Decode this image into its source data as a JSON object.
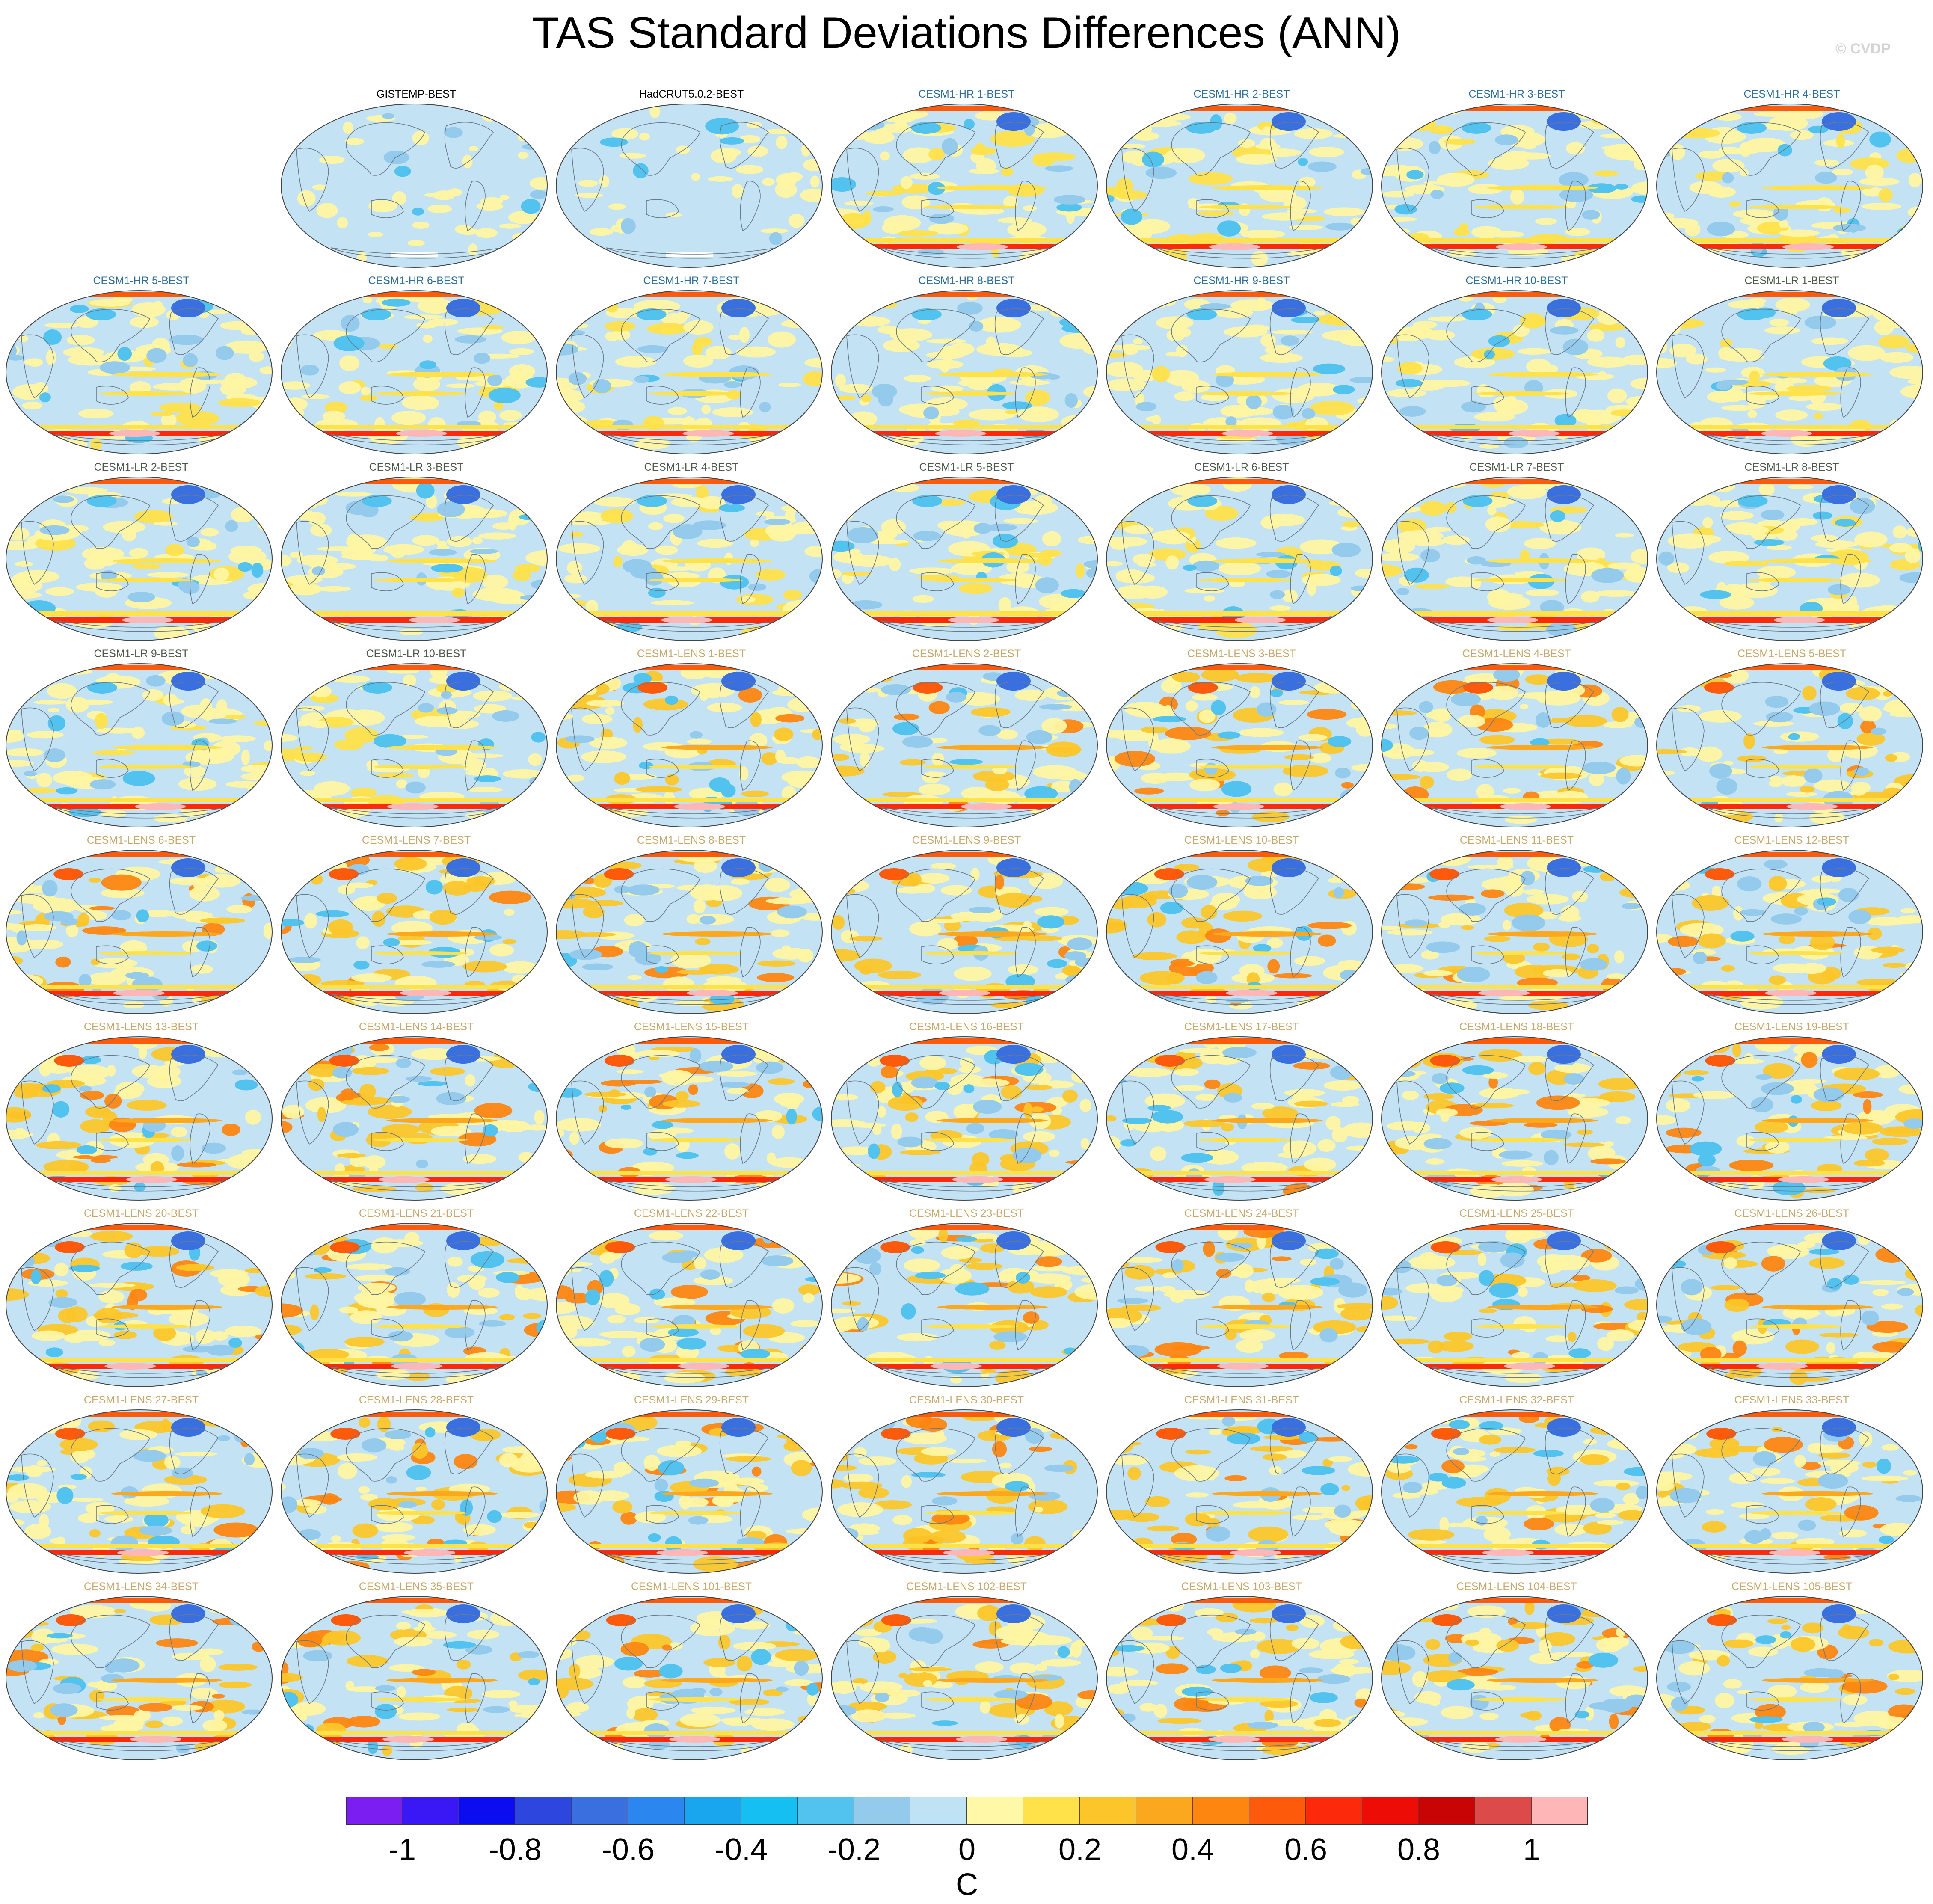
{
  "title": "TAS Standard Deviations Differences (ANN)",
  "watermark": "© CVDP",
  "colorbar": {
    "colors": [
      "#7a1ef2",
      "#3a18f5",
      "#0c0cf0",
      "#2c46de",
      "#3a6fe0",
      "#2b86f0",
      "#1aa6ef",
      "#16bff2",
      "#52c3ee",
      "#94cbec",
      "#bfe2f5",
      "#fff8a6",
      "#ffe24a",
      "#fcc62a",
      "#fca81e",
      "#fd8610",
      "#fd5a0c",
      "#fc2a0a",
      "#ee0c06",
      "#c80404",
      "#dd4a4a",
      "#ffb6b6"
    ],
    "tick_labels": [
      "-1",
      "-0.8",
      "-0.6",
      "-0.4",
      "-0.2",
      "0",
      "0.2",
      "0.4",
      "0.6",
      "0.8",
      "1"
    ],
    "levels": [
      -1.0,
      -0.9,
      -0.8,
      -0.7,
      -0.6,
      -0.5,
      -0.4,
      -0.3,
      -0.2,
      -0.1,
      0,
      0.1,
      0.2,
      0.3,
      0.4,
      0.5,
      0.6,
      0.7,
      0.8,
      0.9,
      1.0
    ],
    "units": "C"
  },
  "title_colors": {
    "obs": "#000000",
    "hr": "#2c6e9e",
    "lr": "#4a5a48",
    "lens": "#c8a86a"
  },
  "panels": [
    {
      "label": "GISTEMP-BEST",
      "group": "obs"
    },
    {
      "label": "HadCRUT5.0.2-BEST",
      "group": "obs"
    },
    {
      "label": "CESM1-HR 1-BEST",
      "group": "hr"
    },
    {
      "label": "CESM1-HR 2-BEST",
      "group": "hr"
    },
    {
      "label": "CESM1-HR 3-BEST",
      "group": "hr"
    },
    {
      "label": "CESM1-HR 4-BEST",
      "group": "hr"
    },
    {
      "label": "CESM1-HR 5-BEST",
      "group": "hr"
    },
    {
      "label": "CESM1-HR 6-BEST",
      "group": "hr"
    },
    {
      "label": "CESM1-HR 7-BEST",
      "group": "hr"
    },
    {
      "label": "CESM1-HR 8-BEST",
      "group": "hr"
    },
    {
      "label": "CESM1-HR 9-BEST",
      "group": "hr"
    },
    {
      "label": "CESM1-HR 10-BEST",
      "group": "hr"
    },
    {
      "label": "CESM1-LR 1-BEST",
      "group": "lr"
    },
    {
      "label": "CESM1-LR 2-BEST",
      "group": "lr"
    },
    {
      "label": "CESM1-LR 3-BEST",
      "group": "lr"
    },
    {
      "label": "CESM1-LR 4-BEST",
      "group": "lr"
    },
    {
      "label": "CESM1-LR 5-BEST",
      "group": "lr"
    },
    {
      "label": "CESM1-LR 6-BEST",
      "group": "lr"
    },
    {
      "label": "CESM1-LR 7-BEST",
      "group": "lr"
    },
    {
      "label": "CESM1-LR 8-BEST",
      "group": "lr"
    },
    {
      "label": "CESM1-LR 9-BEST",
      "group": "lr"
    },
    {
      "label": "CESM1-LR 10-BEST",
      "group": "lr"
    },
    {
      "label": "CESM1-LENS 1-BEST",
      "group": "lens"
    },
    {
      "label": "CESM1-LENS 2-BEST",
      "group": "lens"
    },
    {
      "label": "CESM1-LENS 3-BEST",
      "group": "lens"
    },
    {
      "label": "CESM1-LENS 4-BEST",
      "group": "lens"
    },
    {
      "label": "CESM1-LENS 5-BEST",
      "group": "lens"
    },
    {
      "label": "CESM1-LENS 6-BEST",
      "group": "lens"
    },
    {
      "label": "CESM1-LENS 7-BEST",
      "group": "lens"
    },
    {
      "label": "CESM1-LENS 8-BEST",
      "group": "lens"
    },
    {
      "label": "CESM1-LENS 9-BEST",
      "group": "lens"
    },
    {
      "label": "CESM1-LENS 10-BEST",
      "group": "lens"
    },
    {
      "label": "CESM1-LENS 11-BEST",
      "group": "lens"
    },
    {
      "label": "CESM1-LENS 12-BEST",
      "group": "lens"
    },
    {
      "label": "CESM1-LENS 13-BEST",
      "group": "lens"
    },
    {
      "label": "CESM1-LENS 14-BEST",
      "group": "lens"
    },
    {
      "label": "CESM1-LENS 15-BEST",
      "group": "lens"
    },
    {
      "label": "CESM1-LENS 16-BEST",
      "group": "lens"
    },
    {
      "label": "CESM1-LENS 17-BEST",
      "group": "lens"
    },
    {
      "label": "CESM1-LENS 18-BEST",
      "group": "lens"
    },
    {
      "label": "CESM1-LENS 19-BEST",
      "group": "lens"
    },
    {
      "label": "CESM1-LENS 20-BEST",
      "group": "lens"
    },
    {
      "label": "CESM1-LENS 21-BEST",
      "group": "lens"
    },
    {
      "label": "CESM1-LENS 22-BEST",
      "group": "lens"
    },
    {
      "label": "CESM1-LENS 23-BEST",
      "group": "lens"
    },
    {
      "label": "CESM1-LENS 24-BEST",
      "group": "lens"
    },
    {
      "label": "CESM1-LENS 25-BEST",
      "group": "lens"
    },
    {
      "label": "CESM1-LENS 26-BEST",
      "group": "lens"
    },
    {
      "label": "CESM1-LENS 27-BEST",
      "group": "lens"
    },
    {
      "label": "CESM1-LENS 28-BEST",
      "group": "lens"
    },
    {
      "label": "CESM1-LENS 29-BEST",
      "group": "lens"
    },
    {
      "label": "CESM1-LENS 30-BEST",
      "group": "lens"
    },
    {
      "label": "CESM1-LENS 31-BEST",
      "group": "lens"
    },
    {
      "label": "CESM1-LENS 32-BEST",
      "group": "lens"
    },
    {
      "label": "CESM1-LENS 33-BEST",
      "group": "lens"
    },
    {
      "label": "CESM1-LENS 34-BEST",
      "group": "lens"
    },
    {
      "label": "CESM1-LENS 35-BEST",
      "group": "lens"
    },
    {
      "label": "CESM1-LENS 101-BEST",
      "group": "lens"
    },
    {
      "label": "CESM1-LENS 102-BEST",
      "group": "lens"
    },
    {
      "label": "CESM1-LENS 103-BEST",
      "group": "lens"
    },
    {
      "label": "CESM1-LENS 104-BEST",
      "group": "lens"
    },
    {
      "label": "CESM1-LENS 105-BEST",
      "group": "lens"
    }
  ]
}
